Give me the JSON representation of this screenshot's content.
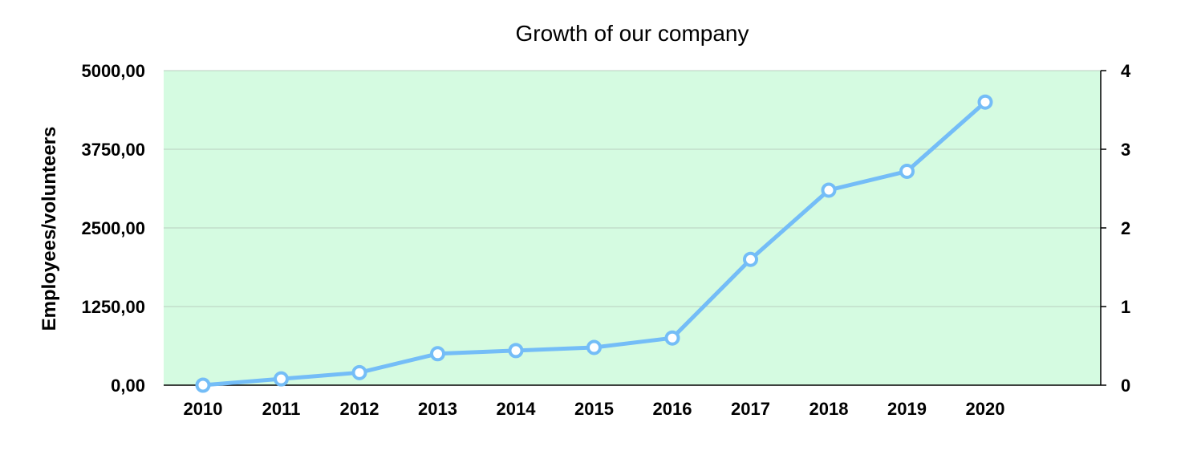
{
  "chart_data": {
    "type": "line",
    "title": "Growth of our company",
    "ylabel": "Employees/volunteers",
    "categories": [
      "2010",
      "2011",
      "2012",
      "2013",
      "2014",
      "2015",
      "2016",
      "2017",
      "2018",
      "2019",
      "2020"
    ],
    "series": [
      {
        "values": [
          0,
          100,
          200,
          500,
          550,
          600,
          750,
          2000,
          3100,
          3400,
          4500
        ]
      }
    ],
    "ylim": [
      0,
      5000
    ],
    "y_ticks": [
      "0,00",
      "1250,00",
      "2500,00",
      "3750,00",
      "5000,00"
    ],
    "y2lim": [
      0,
      4
    ],
    "y2_ticks": [
      "0",
      "1",
      "2",
      "3",
      "4"
    ],
    "grid": true,
    "colors": {
      "line": "#74bdf7",
      "plot_bg": "#d5fbe1",
      "grid": "#b9cfc0",
      "axis": "#000000"
    }
  }
}
